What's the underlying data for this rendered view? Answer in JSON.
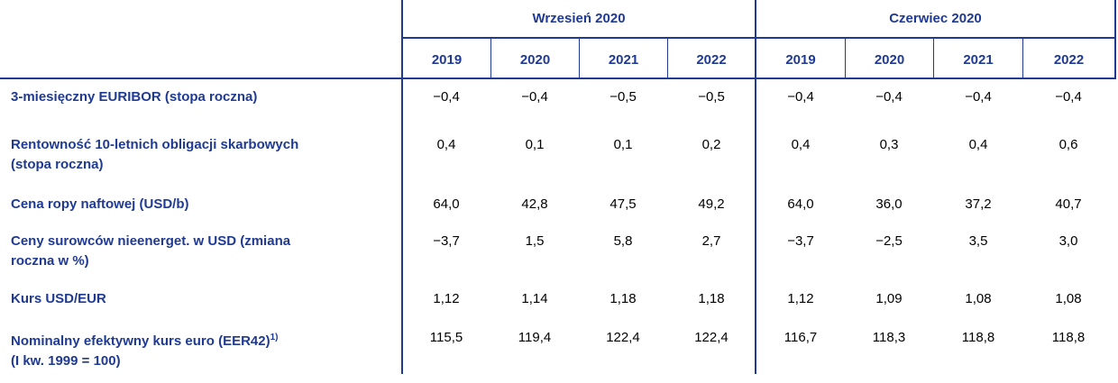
{
  "groups": [
    {
      "label": "Wrzesień 2020",
      "years": [
        "2019",
        "2020",
        "2021",
        "2022"
      ]
    },
    {
      "label": "Czerwiec 2020",
      "years": [
        "2019",
        "2020",
        "2021",
        "2022"
      ]
    }
  ],
  "rows": [
    {
      "label": "3-miesięczny EURIBOR (stopa roczna)",
      "sup": "",
      "label2": "",
      "values": [
        "−0,4",
        "−0,4",
        "−0,5",
        "−0,5",
        "−0,4",
        "−0,4",
        "−0,4",
        "−0,4"
      ]
    },
    {
      "label": "Rentowność 10-letnich obligacji skarbowych",
      "sup": "",
      "label2": "(stopa roczna)",
      "values": [
        "0,4",
        "0,1",
        "0,1",
        "0,2",
        "0,4",
        "0,3",
        "0,4",
        "0,6"
      ]
    },
    {
      "label": "Cena ropy naftowej (USD/b)",
      "sup": "",
      "label2": "",
      "values": [
        "64,0",
        "42,8",
        "47,5",
        "49,2",
        "64,0",
        "36,0",
        "37,2",
        "40,7"
      ]
    },
    {
      "label": "Ceny surowców nieenerget. w USD (zmiana",
      "sup": "",
      "label2": "roczna w %)",
      "values": [
        "−3,7",
        "1,5",
        "5,8",
        "2,7",
        "−3,7",
        "−2,5",
        "3,5",
        "3,0"
      ]
    },
    {
      "label": "Kurs USD/EUR",
      "sup": "",
      "label2": "",
      "values": [
        "1,12",
        "1,14",
        "1,18",
        "1,18",
        "1,12",
        "1,09",
        "1,08",
        "1,08"
      ]
    },
    {
      "label": "Nominalny efektywny kurs euro (EER42)",
      "sup": "1)",
      "label2": "(I kw. 1999 = 100)",
      "values": [
        "115,5",
        "119,4",
        "122,4",
        "122,4",
        "116,7",
        "118,3",
        "118,8",
        "118,8"
      ]
    }
  ]
}
